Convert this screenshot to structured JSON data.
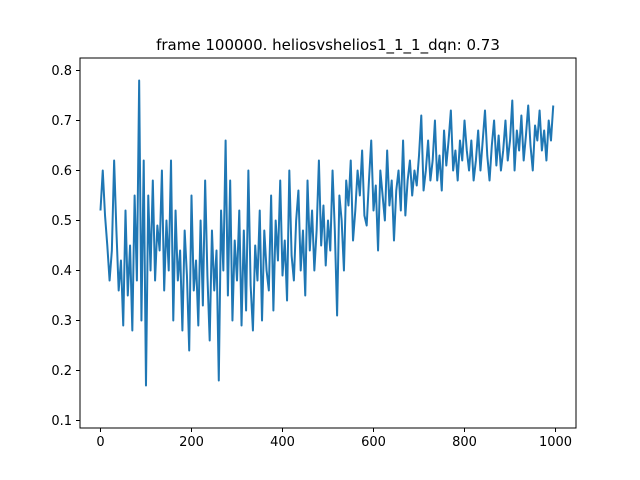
{
  "chart_data": {
    "type": "line",
    "title": "frame 100000. heliosvshelios1_1_1_dqn: 0.73",
    "xlabel": "",
    "ylabel": "",
    "xlim": [
      -45,
      1045
    ],
    "ylim": [
      0.085,
      0.825
    ],
    "x_ticks": [
      0,
      200,
      400,
      600,
      800,
      1000
    ],
    "y_ticks": [
      0.1,
      0.2,
      0.3,
      0.4,
      0.5,
      0.6,
      0.7,
      0.8
    ],
    "x_tick_labels": [
      "0",
      "200",
      "400",
      "600",
      "800",
      "1000"
    ],
    "y_tick_labels": [
      "0.1",
      "0.2",
      "0.3",
      "0.4",
      "0.5",
      "0.6",
      "0.7",
      "0.8"
    ],
    "grid": false,
    "line_color": "#1f77b4",
    "series": [
      {
        "x_start": 0,
        "x_step": 5,
        "values": [
          0.52,
          0.6,
          0.51,
          0.45,
          0.38,
          0.44,
          0.62,
          0.48,
          0.36,
          0.42,
          0.29,
          0.52,
          0.35,
          0.45,
          0.28,
          0.55,
          0.38,
          0.78,
          0.3,
          0.62,
          0.17,
          0.55,
          0.4,
          0.58,
          0.38,
          0.49,
          0.44,
          0.6,
          0.36,
          0.5,
          0.4,
          0.62,
          0.3,
          0.52,
          0.38,
          0.44,
          0.28,
          0.48,
          0.39,
          0.24,
          0.55,
          0.36,
          0.42,
          0.29,
          0.5,
          0.33,
          0.58,
          0.39,
          0.26,
          0.48,
          0.36,
          0.44,
          0.18,
          0.52,
          0.4,
          0.66,
          0.35,
          0.58,
          0.3,
          0.46,
          0.38,
          0.52,
          0.29,
          0.48,
          0.32,
          0.6,
          0.37,
          0.28,
          0.45,
          0.38,
          0.52,
          0.3,
          0.48,
          0.4,
          0.36,
          0.55,
          0.32,
          0.5,
          0.42,
          0.58,
          0.39,
          0.46,
          0.34,
          0.6,
          0.43,
          0.38,
          0.5,
          0.56,
          0.4,
          0.48,
          0.35,
          0.58,
          0.44,
          0.52,
          0.4,
          0.48,
          0.62,
          0.45,
          0.53,
          0.41,
          0.5,
          0.44,
          0.6,
          0.48,
          0.31,
          0.55,
          0.5,
          0.4,
          0.58,
          0.53,
          0.62,
          0.46,
          0.52,
          0.6,
          0.55,
          0.64,
          0.51,
          0.49,
          0.58,
          0.66,
          0.52,
          0.57,
          0.44,
          0.6,
          0.55,
          0.5,
          0.64,
          0.53,
          0.58,
          0.46,
          0.56,
          0.6,
          0.52,
          0.66,
          0.51,
          0.58,
          0.62,
          0.55,
          0.6,
          0.57,
          0.63,
          0.71,
          0.56,
          0.6,
          0.66,
          0.58,
          0.62,
          0.7,
          0.58,
          0.63,
          0.56,
          0.68,
          0.61,
          0.66,
          0.72,
          0.6,
          0.64,
          0.58,
          0.66,
          0.62,
          0.7,
          0.64,
          0.6,
          0.66,
          0.58,
          0.62,
          0.68,
          0.6,
          0.66,
          0.72,
          0.63,
          0.58,
          0.65,
          0.7,
          0.61,
          0.67,
          0.6,
          0.64,
          0.7,
          0.62,
          0.66,
          0.74,
          0.6,
          0.68,
          0.64,
          0.71,
          0.62,
          0.67,
          0.73,
          0.65,
          0.6,
          0.69,
          0.66,
          0.72,
          0.64,
          0.68,
          0.62,
          0.7,
          0.66,
          0.73
        ]
      }
    ]
  }
}
